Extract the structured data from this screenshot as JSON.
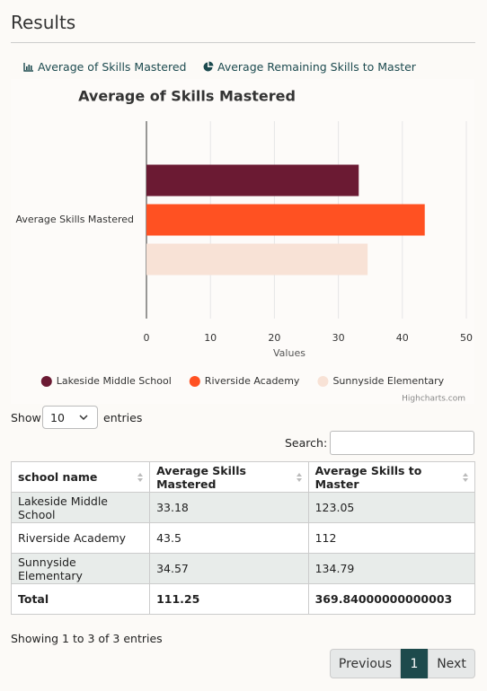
{
  "header": {
    "title": "Results"
  },
  "tabs": [
    "Average of Skills Mastered",
    "Average Remaining Skills to Master"
  ],
  "chart_data": {
    "type": "bar",
    "orientation": "horizontal",
    "title": "Average of Skills Mastered",
    "categories": [
      "Average Skills Mastered"
    ],
    "series": [
      {
        "name": "Lakeside Middle School",
        "color": "#6b1a33",
        "values": [
          33.18
        ]
      },
      {
        "name": "Riverside Academy",
        "color": "#ff5122",
        "values": [
          43.5
        ]
      },
      {
        "name": "Sunnyside Elementary",
        "color": "#f8e2d6",
        "values": [
          34.57
        ]
      }
    ],
    "xlabel": "Values",
    "xlim": [
      0,
      50
    ],
    "xticks": [
      0,
      10,
      20,
      30,
      40,
      50
    ],
    "grid": true,
    "credit": "Highcharts.com"
  },
  "controls": {
    "show_label": "Show",
    "page_length": "10",
    "entries_label": "entries",
    "search_label": "Search:"
  },
  "table": {
    "columns": [
      "school name",
      "Average Skills Mastered",
      "Average Skills to Master"
    ],
    "rows": [
      [
        "Lakeside Middle School",
        "33.18",
        "123.05"
      ],
      [
        "Riverside Academy",
        "43.5",
        "112"
      ],
      [
        "Sunnyside Elementary",
        "34.57",
        "134.79"
      ]
    ],
    "footer": [
      "Total",
      "111.25",
      "369.84000000000003"
    ]
  },
  "info": "Showing 1 to 3 of 3 entries",
  "pagination": {
    "previous": "Previous",
    "current": "1",
    "next": "Next"
  }
}
